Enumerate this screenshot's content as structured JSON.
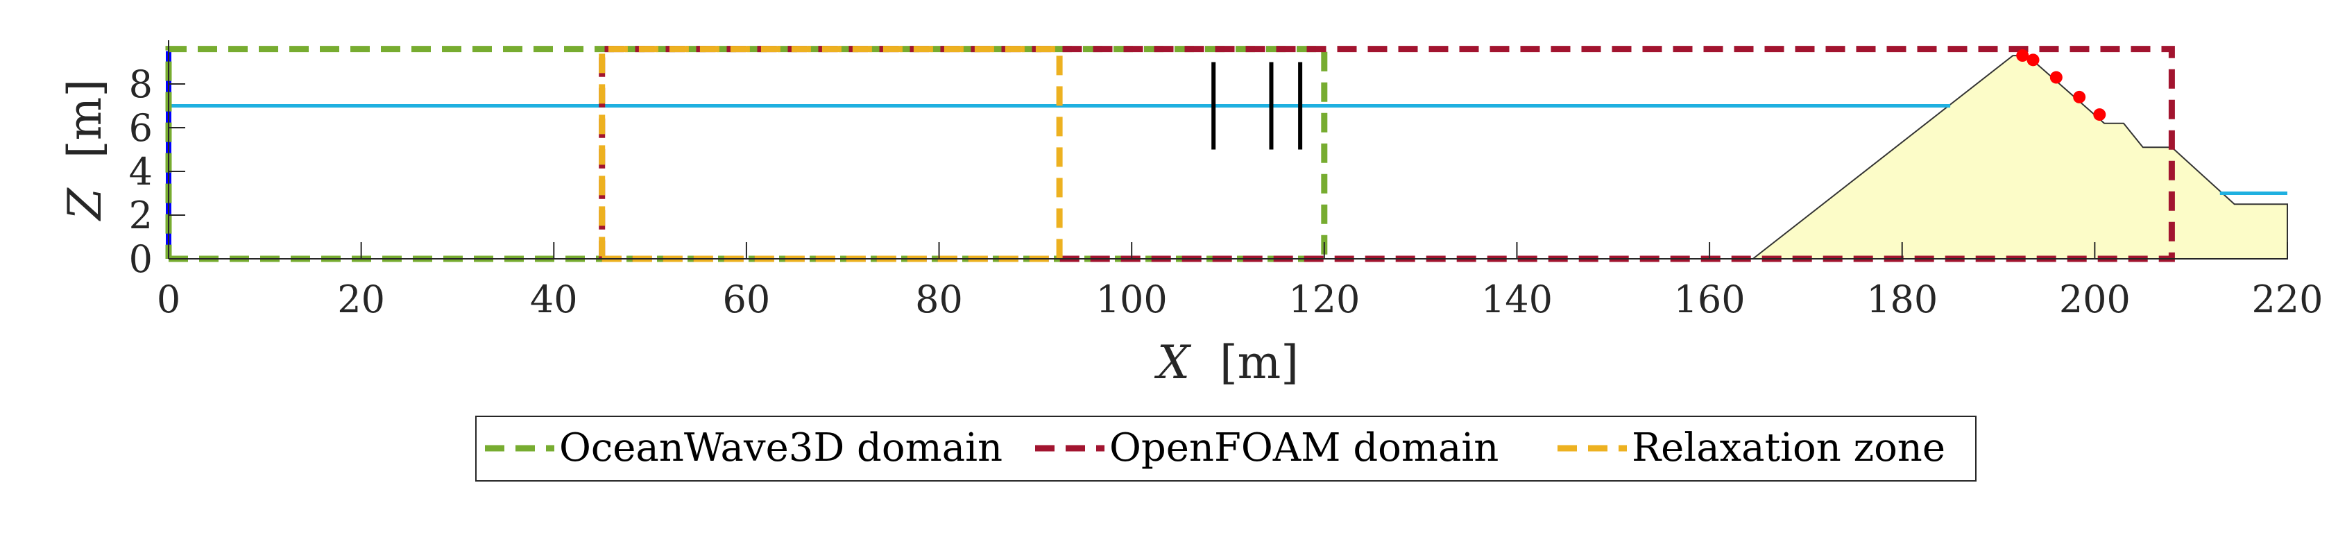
{
  "chart_data": {
    "type": "line",
    "title": "",
    "xlabel": {
      "symbol": "X",
      "unit": "[m]"
    },
    "ylabel": {
      "symbol": "Z",
      "unit": "[m]"
    },
    "xlim": [
      0,
      220
    ],
    "ylim": [
      0,
      10
    ],
    "xticks": [
      0,
      20,
      40,
      60,
      80,
      100,
      120,
      140,
      160,
      180,
      200,
      220
    ],
    "yticks": [
      0,
      2,
      4,
      6,
      8
    ],
    "grid": false,
    "legend_position": "bottom-outside",
    "series": [
      {
        "name": "OceanWave3D domain",
        "style": "dashed",
        "color": "#77ac30",
        "x": [
          0,
          120,
          120,
          0,
          0
        ],
        "y": [
          0,
          0,
          9.6,
          9.6,
          0
        ]
      },
      {
        "name": "OpenFOAM domain",
        "style": "dashed",
        "color": "#a2142f",
        "x": [
          45,
          208,
          208,
          45,
          45
        ],
        "y": [
          0,
          0,
          9.6,
          9.6,
          0
        ]
      },
      {
        "name": "Relaxation zone",
        "style": "dashed",
        "color": "#edb120",
        "x": [
          45,
          92.5,
          92.5,
          45,
          45
        ],
        "y": [
          0,
          0,
          9.6,
          9.6,
          0
        ]
      }
    ],
    "extras": {
      "still_water_left": {
        "color": "#1fb0e0",
        "x": [
          0,
          185
        ],
        "y": [
          7,
          7
        ]
      },
      "still_water_right": {
        "color": "#1fb0e0",
        "x": [
          213,
          220
        ],
        "y": [
          3,
          3
        ]
      },
      "wavemaker_boundary": {
        "color": "#0000ff",
        "x": [
          0,
          0
        ],
        "y": [
          0,
          9.5
        ]
      },
      "breakwater_profile": {
        "fill": "#fcfcc8",
        "stroke": "#333333",
        "x": [
          164.5,
          191.5,
          193,
          201,
          203,
          205,
          208,
          214.5,
          220,
          220,
          164.5
        ],
        "y": [
          0,
          9.3,
          9.3,
          6.2,
          6.2,
          5.1,
          5.1,
          2.5,
          2.5,
          0,
          0
        ]
      },
      "wave_gauges": {
        "color": "#000000",
        "x": [
          108.5,
          114.5,
          117.5
        ],
        "y_range": [
          5,
          9
        ]
      },
      "pressure_sensors": {
        "color": "#ff0000",
        "x": [
          192.5,
          193.6,
          196,
          198.4,
          200.5
        ],
        "y": [
          9.3,
          9.1,
          8.3,
          7.4,
          6.6
        ]
      }
    }
  }
}
